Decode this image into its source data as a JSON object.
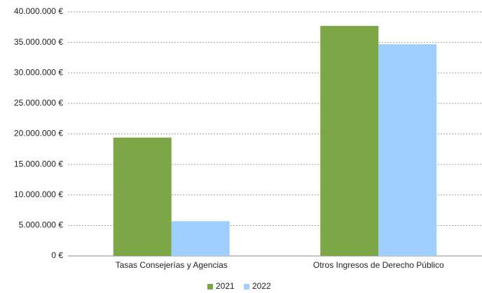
{
  "chart_data": {
    "type": "bar",
    "categories": [
      "Tasas Consejerías y Agencias",
      "Otros Ingresos de Derecho Público"
    ],
    "series": [
      {
        "name": "2021",
        "color": "#7da646",
        "values": [
          19400000,
          37700000
        ]
      },
      {
        "name": "2022",
        "color": "#9fcfff",
        "values": [
          5700000,
          34700000
        ]
      }
    ],
    "ylim": [
      0,
      40000000
    ],
    "yticks": [
      {
        "value": 0,
        "label": "0 €"
      },
      {
        "value": 5000000,
        "label": "5.000.000 €"
      },
      {
        "value": 10000000,
        "label": "10.000.000 €"
      },
      {
        "value": 15000000,
        "label": "15.000.000 €"
      },
      {
        "value": 20000000,
        "label": "20.000.000 €"
      },
      {
        "value": 25000000,
        "label": "25.000.000 €"
      },
      {
        "value": 30000000,
        "label": "30.000.000 €"
      },
      {
        "value": 35000000,
        "label": "35.000.000 €"
      },
      {
        "value": 40000000,
        "label": "40.000.000 €"
      }
    ],
    "grid": true,
    "legend": "bottom"
  }
}
